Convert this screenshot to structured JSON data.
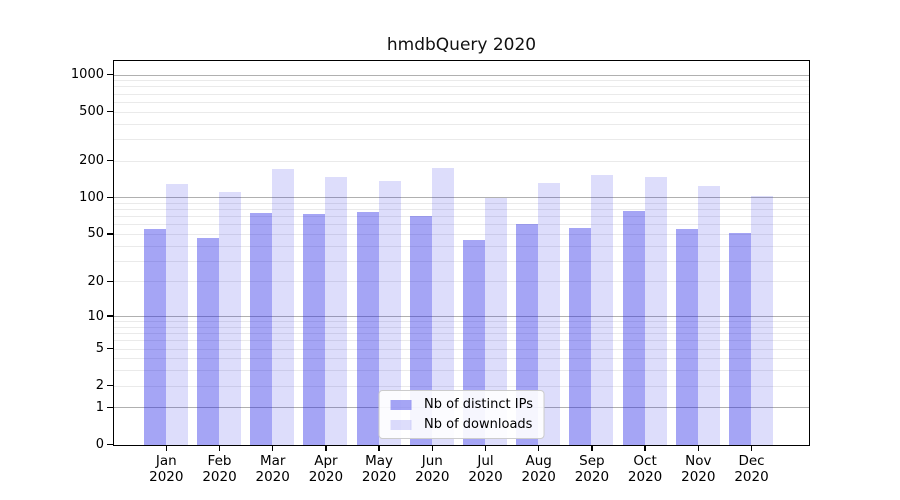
{
  "title": "hmdbQuery 2020",
  "chart_data": {
    "type": "bar",
    "title": "hmdbQuery 2020",
    "categories": [
      "Jan 2020",
      "Feb 2020",
      "Mar 2020",
      "Apr 2020",
      "May 2020",
      "Jun 2020",
      "Jul 2020",
      "Aug 2020",
      "Sep 2020",
      "Oct 2020",
      "Nov 2020",
      "Dec 2020"
    ],
    "series": [
      {
        "name": "Nb of distinct IPs",
        "color": "rgba(30,30,230,0.4)",
        "values": [
          56,
          47,
          75,
          74,
          76,
          71,
          45,
          61,
          57,
          78,
          55,
          51
        ]
      },
      {
        "name": "Nb of downloads",
        "color": "rgba(30,30,230,0.15)",
        "values": [
          131,
          111,
          171,
          147,
          137,
          174,
          100,
          133,
          154,
          147,
          125,
          104
        ]
      }
    ],
    "yscale": "log1p (position proportional to log10(1+value))",
    "ylim": [
      0,
      1280
    ],
    "yticks": [
      0,
      1,
      2,
      5,
      10,
      20,
      50,
      100,
      200,
      500,
      1000
    ],
    "xlabel": "",
    "ylabel": "",
    "grid": "horizontal major (powers of 10) + minor",
    "legend_position": "lower center inside plot"
  },
  "colors": {
    "background": "#ffffff",
    "bar_distinct_ips": "rgba(30,30,230,0.4)",
    "bar_downloads": "rgba(30,30,230,0.15)",
    "major_gridline": "#b0b0b0",
    "minor_gridline": "#eaeaea",
    "axis_border": "#000000",
    "legend_border": "#cccccc"
  }
}
